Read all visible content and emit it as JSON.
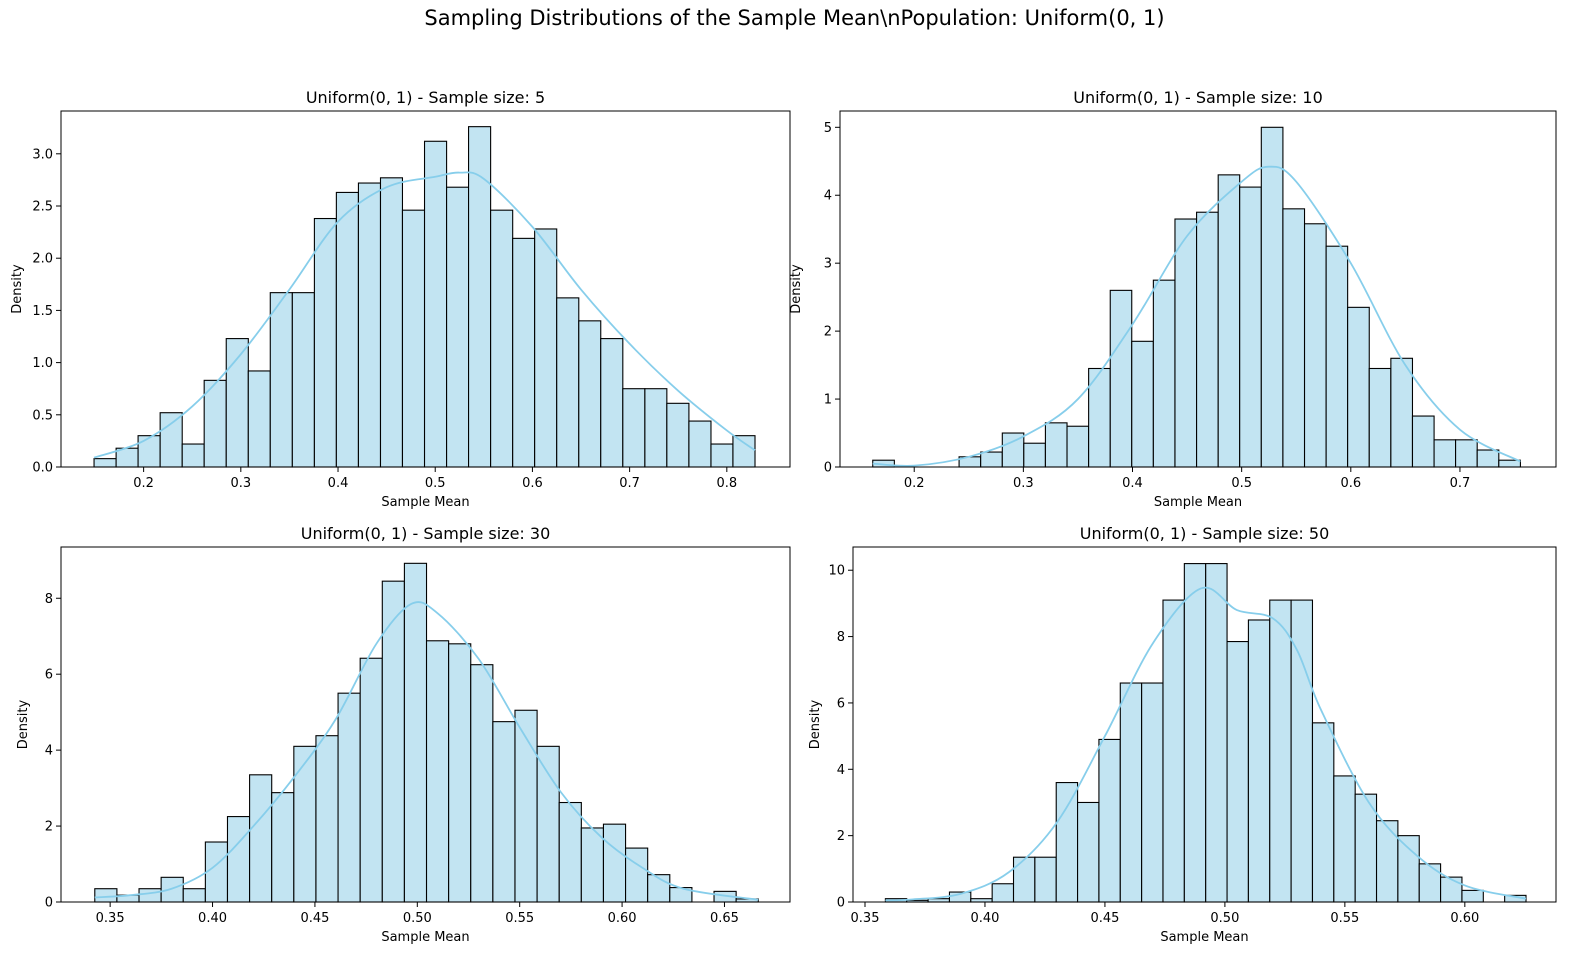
{
  "figure": {
    "suptitle": "Sampling Distributions of the Sample Mean\\nPopulation: Uniform(0, 1)"
  },
  "style": {
    "bar_fill": "#c2e4f2",
    "bar_edge": "#000000",
    "kde_color": "#87ceeb"
  },
  "chart_data": [
    {
      "type": "bar",
      "title": "Uniform(0, 1) - Sample size: 5",
      "xlabel": "Sample Mean",
      "ylabel": "Density",
      "xlim": [
        0.115,
        0.865
      ],
      "ylim": [
        0,
        3.41
      ],
      "xticks": [
        0.2,
        0.3,
        0.4,
        0.5,
        0.6,
        0.7,
        0.8
      ],
      "xtick_labels": [
        "0.2",
        "0.3",
        "0.4",
        "0.5",
        "0.6",
        "0.7",
        "0.8"
      ],
      "yticks": [
        0,
        0.5,
        1.0,
        1.5,
        2.0,
        2.5,
        3.0
      ],
      "ytick_labels": [
        "0.0",
        "0.5",
        "1.0",
        "1.5",
        "2.0",
        "2.5",
        "3.0"
      ],
      "bin_edges": [
        0.149,
        0.1717,
        0.1943,
        0.217,
        0.2397,
        0.2623,
        0.285,
        0.3077,
        0.3303,
        0.353,
        0.3757,
        0.3983,
        0.421,
        0.4437,
        0.4663,
        0.489,
        0.5117,
        0.5343,
        0.557,
        0.5797,
        0.6023,
        0.625,
        0.6477,
        0.6703,
        0.693,
        0.7157,
        0.7383,
        0.761,
        0.7837,
        0.8063,
        0.829
      ],
      "values": [
        0.08,
        0.18,
        0.3,
        0.52,
        0.22,
        0.83,
        1.23,
        0.92,
        1.67,
        1.67,
        2.38,
        2.63,
        2.72,
        2.77,
        2.46,
        3.12,
        2.68,
        3.26,
        2.46,
        2.19,
        2.28,
        1.62,
        1.4,
        1.23,
        0.75,
        0.75,
        0.61,
        0.44,
        0.22,
        0.3
      ],
      "kde": [
        [
          0.149,
          0.09
        ],
        [
          0.2,
          0.25
        ],
        [
          0.25,
          0.58
        ],
        [
          0.3,
          1.08
        ],
        [
          0.35,
          1.7
        ],
        [
          0.4,
          2.35
        ],
        [
          0.45,
          2.68
        ],
        [
          0.5,
          2.78
        ],
        [
          0.525,
          2.82
        ],
        [
          0.55,
          2.76
        ],
        [
          0.6,
          2.3
        ],
        [
          0.65,
          1.7
        ],
        [
          0.7,
          1.18
        ],
        [
          0.75,
          0.73
        ],
        [
          0.8,
          0.35
        ],
        [
          0.829,
          0.16
        ]
      ]
    },
    {
      "type": "bar",
      "title": "Uniform(0, 1) - Sample size: 10",
      "xlabel": "Sample Mean",
      "ylabel": "Density",
      "xlim": [
        0.132,
        0.788
      ],
      "ylim": [
        0,
        5.24
      ],
      "xticks": [
        0.2,
        0.3,
        0.4,
        0.5,
        0.6,
        0.7
      ],
      "xtick_labels": [
        "0.2",
        "0.3",
        "0.4",
        "0.5",
        "0.6",
        "0.7"
      ],
      "yticks": [
        0,
        1,
        2,
        3,
        4,
        5
      ],
      "ytick_labels": [
        "0",
        "1",
        "2",
        "3",
        "4",
        "5"
      ],
      "bin_edges": [
        0.162,
        0.1818,
        0.2015,
        0.2213,
        0.2411,
        0.2609,
        0.2807,
        0.3004,
        0.3202,
        0.34,
        0.3598,
        0.3796,
        0.3993,
        0.4191,
        0.4389,
        0.4587,
        0.4785,
        0.4982,
        0.518,
        0.5378,
        0.5576,
        0.5774,
        0.5971,
        0.6169,
        0.6367,
        0.6565,
        0.6763,
        0.696,
        0.7158,
        0.7356,
        0.7554
      ],
      "values": [
        0.1,
        0,
        0,
        0,
        0.15,
        0.22,
        0.5,
        0.35,
        0.65,
        0.6,
        1.45,
        2.6,
        1.85,
        2.75,
        3.65,
        3.75,
        4.3,
        4.12,
        5.0,
        3.8,
        3.58,
        3.25,
        2.35,
        1.45,
        1.6,
        0.75,
        0.4,
        0.4,
        0.25,
        0.1
      ],
      "kde": [
        [
          0.162,
          0.05
        ],
        [
          0.2,
          0.02
        ],
        [
          0.25,
          0.15
        ],
        [
          0.3,
          0.45
        ],
        [
          0.35,
          1.0
        ],
        [
          0.4,
          2.1
        ],
        [
          0.45,
          3.4
        ],
        [
          0.5,
          4.2
        ],
        [
          0.525,
          4.42
        ],
        [
          0.55,
          4.2
        ],
        [
          0.6,
          3.0
        ],
        [
          0.65,
          1.5
        ],
        [
          0.7,
          0.55
        ],
        [
          0.7554,
          0.08
        ]
      ]
    },
    {
      "type": "bar",
      "title": "Uniform(0, 1) - Sample size: 30",
      "xlabel": "Sample Mean",
      "ylabel": "Density",
      "xlim": [
        0.326,
        0.682
      ],
      "ylim": [
        0,
        9.35
      ],
      "xticks": [
        0.35,
        0.4,
        0.45,
        0.5,
        0.55,
        0.6,
        0.65
      ],
      "xtick_labels": [
        "0.35",
        "0.40",
        "0.45",
        "0.50",
        "0.55",
        "0.60",
        "0.65"
      ],
      "yticks": [
        0,
        2,
        4,
        6,
        8
      ],
      "ytick_labels": [
        "0",
        "2",
        "4",
        "6",
        "8"
      ],
      "bin_edges": [
        0.3425,
        0.3533,
        0.3641,
        0.3749,
        0.3857,
        0.3965,
        0.4073,
        0.4181,
        0.4289,
        0.4397,
        0.4505,
        0.4613,
        0.4721,
        0.4829,
        0.4937,
        0.5045,
        0.5153,
        0.5261,
        0.5369,
        0.5477,
        0.5585,
        0.5693,
        0.5801,
        0.5909,
        0.6017,
        0.6125,
        0.6233,
        0.6341,
        0.6449,
        0.6557,
        0.6665
      ],
      "values": [
        0.35,
        0.18,
        0.35,
        0.65,
        0.35,
        1.58,
        2.25,
        3.35,
        2.88,
        4.1,
        4.38,
        5.5,
        6.42,
        8.45,
        8.92,
        6.88,
        6.8,
        6.25,
        4.75,
        5.05,
        4.1,
        2.62,
        1.95,
        2.05,
        1.42,
        0.72,
        0.38,
        0,
        0.28,
        0.08
      ],
      "kde": [
        [
          0.3425,
          0.12
        ],
        [
          0.36,
          0.18
        ],
        [
          0.38,
          0.35
        ],
        [
          0.4,
          0.9
        ],
        [
          0.42,
          2.0
        ],
        [
          0.44,
          3.3
        ],
        [
          0.46,
          4.8
        ],
        [
          0.48,
          6.8
        ],
        [
          0.497,
          7.85
        ],
        [
          0.51,
          7.6
        ],
        [
          0.53,
          6.4
        ],
        [
          0.55,
          4.6
        ],
        [
          0.57,
          2.9
        ],
        [
          0.59,
          1.7
        ],
        [
          0.61,
          0.9
        ],
        [
          0.63,
          0.35
        ],
        [
          0.6665,
          0.06
        ]
      ]
    },
    {
      "type": "bar",
      "title": "Uniform(0, 1) - Sample size: 50",
      "xlabel": "Sample Mean",
      "ylabel": "Density",
      "xlim": [
        0.345,
        0.638
      ],
      "ylim": [
        0,
        10.7
      ],
      "xticks": [
        0.35,
        0.4,
        0.45,
        0.5,
        0.55,
        0.6
      ],
      "xtick_labels": [
        "0.35",
        "0.40",
        "0.45",
        "0.50",
        "0.55",
        "0.60"
      ],
      "yticks": [
        0,
        2,
        4,
        6,
        8,
        10
      ],
      "ytick_labels": [
        "0",
        "2",
        "4",
        "6",
        "8",
        "10"
      ],
      "bin_edges": [
        0.3585,
        0.3674,
        0.3763,
        0.3852,
        0.3941,
        0.403,
        0.4119,
        0.4208,
        0.4297,
        0.4386,
        0.4475,
        0.4564,
        0.4653,
        0.4742,
        0.4831,
        0.492,
        0.5009,
        0.5098,
        0.5187,
        0.5276,
        0.5365,
        0.5454,
        0.5543,
        0.5632,
        0.5721,
        0.581,
        0.5899,
        0.5988,
        0.6077,
        0.6166,
        0.6255
      ],
      "values": [
        0.1,
        0.05,
        0.1,
        0.3,
        0.1,
        0.55,
        1.35,
        1.35,
        3.6,
        3.0,
        4.9,
        6.6,
        6.6,
        9.1,
        10.2,
        10.2,
        7.85,
        8.5,
        9.1,
        9.1,
        5.4,
        3.8,
        3.25,
        2.45,
        2.0,
        1.15,
        0.75,
        0.35,
        0,
        0.2
      ],
      "kde": [
        [
          0.3585,
          0.05
        ],
        [
          0.37,
          0.08
        ],
        [
          0.39,
          0.25
        ],
        [
          0.41,
          0.9
        ],
        [
          0.43,
          2.4
        ],
        [
          0.45,
          5.0
        ],
        [
          0.47,
          7.8
        ],
        [
          0.49,
          9.45
        ],
        [
          0.505,
          8.8
        ],
        [
          0.52,
          8.55
        ],
        [
          0.53,
          7.6
        ],
        [
          0.54,
          5.8
        ],
        [
          0.56,
          3.0
        ],
        [
          0.58,
          1.4
        ],
        [
          0.6,
          0.5
        ],
        [
          0.6255,
          0.1
        ]
      ]
    }
  ]
}
